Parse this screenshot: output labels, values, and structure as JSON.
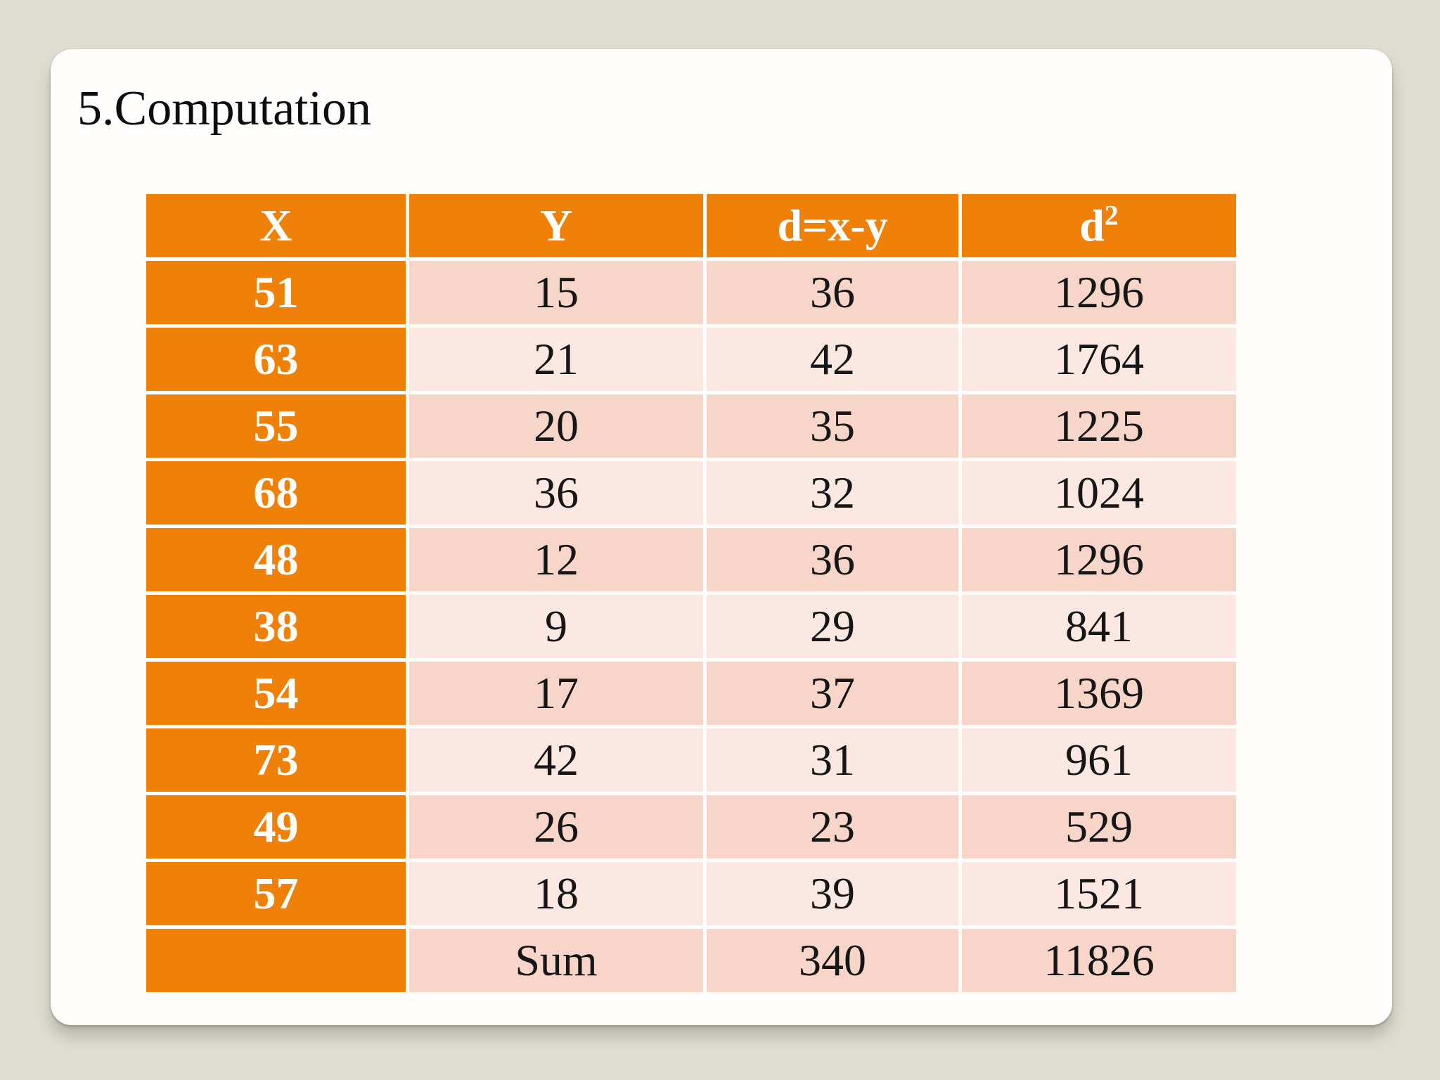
{
  "slide": {
    "title": "5.Computation"
  },
  "table": {
    "headers": [
      {
        "label": "X"
      },
      {
        "label": "Y"
      },
      {
        "label": "d=x-y"
      },
      {
        "label": "d",
        "sup": "2"
      }
    ],
    "rows": [
      {
        "x": "51",
        "y": "15",
        "d": "36",
        "d2": "1296"
      },
      {
        "x": "63",
        "y": "21",
        "d": "42",
        "d2": "1764"
      },
      {
        "x": "55",
        "y": "20",
        "d": "35",
        "d2": "1225"
      },
      {
        "x": "68",
        "y": "36",
        "d": "32",
        "d2": "1024"
      },
      {
        "x": "48",
        "y": "12",
        "d": "36",
        "d2": "1296"
      },
      {
        "x": "38",
        "y": "9",
        "d": "29",
        "d2": "841"
      },
      {
        "x": "54",
        "y": "17",
        "d": "37",
        "d2": "1369"
      },
      {
        "x": "73",
        "y": "42",
        "d": "31",
        "d2": "961"
      },
      {
        "x": "49",
        "y": "26",
        "d": "23",
        "d2": "529"
      },
      {
        "x": "57",
        "y": "18",
        "d": "39",
        "d2": "1521"
      }
    ],
    "footer": {
      "x": "",
      "y": "Sum",
      "d": "340",
      "d2": "11826"
    }
  },
  "colors": {
    "page_background": "#e0ddd3",
    "card_background": "#fffefc",
    "accent_orange": "#ef8108",
    "band_dark_pink": "#f8d5c9",
    "band_light_pink": "#fce8e2",
    "header_text": "#ffffff",
    "body_text": "#161616"
  }
}
